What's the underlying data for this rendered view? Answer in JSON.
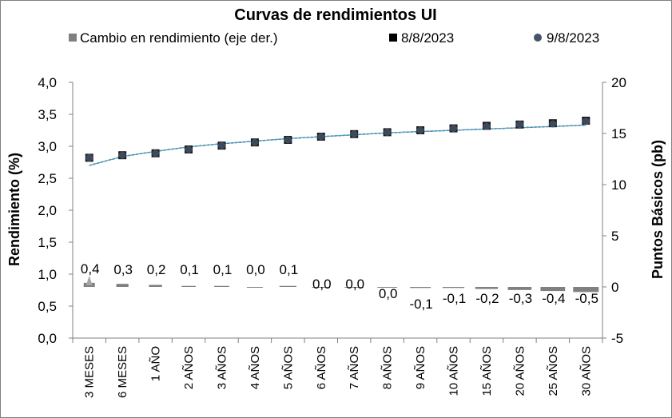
{
  "chart_data": {
    "type": "line",
    "title": "Curvas de rendimientos UI",
    "categories": [
      "3 MESES",
      "6 MESES",
      "1 AÑO",
      "2 AÑOS",
      "3 AÑOS",
      "4 AÑOS",
      "5 AÑOS",
      "6 AÑOS",
      "7 AÑOS",
      "8 AÑOS",
      "9 AÑOS",
      "10 AÑOS",
      "15 AÑOS",
      "20 AÑOS",
      "25 AÑOS",
      "30 AÑOS"
    ],
    "ylabel": "Rendimiento (%)",
    "y2label": "Puntos Básicos (pb)",
    "ylim": [
      0,
      4
    ],
    "y2lim": [
      -5,
      20
    ],
    "yticks": [
      "0,0",
      "0,5",
      "1,0",
      "1,5",
      "2,0",
      "2,5",
      "3,0",
      "3,5",
      "4,0"
    ],
    "y2ticks": [
      "-5",
      "0",
      "5",
      "10",
      "15",
      "20"
    ],
    "legend_position": "top",
    "series": [
      {
        "name": "Cambio en rendimiento (eje der.)",
        "type": "bar",
        "axis": "right",
        "color": "#808080",
        "values": [
          0.4,
          0.3,
          0.2,
          0.1,
          0.1,
          0.0,
          0.1,
          0.0,
          0.0,
          0.0,
          -0.1,
          -0.1,
          -0.2,
          -0.3,
          -0.4,
          -0.5
        ],
        "labels": [
          "0,4",
          "0,3",
          "0,2",
          "0,1",
          "0,1",
          "0,0",
          "0,1",
          "0,0",
          "0,0",
          "0,0",
          "-0,1",
          "-0,1",
          "-0,2",
          "-0,3",
          "-0,4",
          "-0,5"
        ]
      },
      {
        "name": "8/8/2023",
        "type": "scatter",
        "marker": "square",
        "axis": "left",
        "color": "#1a1a1a",
        "values": [
          2.82,
          2.86,
          2.89,
          2.95,
          3.01,
          3.06,
          3.1,
          3.15,
          3.19,
          3.22,
          3.25,
          3.28,
          3.32,
          3.34,
          3.36,
          3.4
        ]
      },
      {
        "name": "9/8/2023",
        "type": "scatter",
        "marker": "circle",
        "axis": "left",
        "color": "#44546a",
        "values": [
          2.82,
          2.86,
          2.89,
          2.95,
          3.01,
          3.06,
          3.1,
          3.15,
          3.19,
          3.22,
          3.25,
          3.28,
          3.31,
          3.34,
          3.35,
          3.39
        ]
      }
    ],
    "fitted_curves": {
      "color_a": "#000000",
      "color_b": "#4ba3c8",
      "values": [
        2.7,
        2.84,
        2.92,
        2.99,
        3.04,
        3.08,
        3.12,
        3.15,
        3.18,
        3.21,
        3.23,
        3.25,
        3.27,
        3.29,
        3.31,
        3.33
      ]
    },
    "grid": false,
    "colors": {
      "bar_legend": "#808080",
      "triangle_marker": "#a6a6a6"
    }
  }
}
